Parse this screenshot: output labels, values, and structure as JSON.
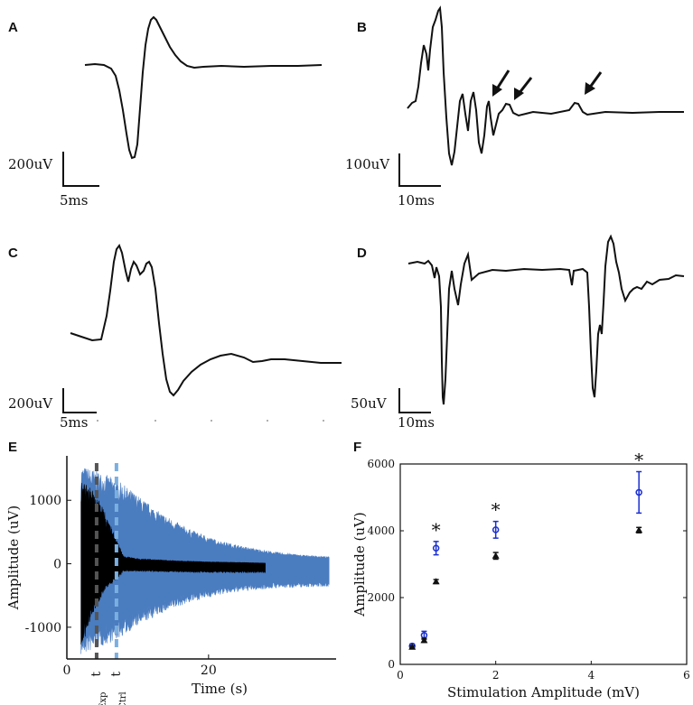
{
  "panels": {
    "A": {
      "letter": "A",
      "scale_v": "200uV",
      "scale_t": "5ms"
    },
    "B": {
      "letter": "B",
      "scale_v": "100uV",
      "scale_t": "10ms"
    },
    "C": {
      "letter": "C",
      "scale_v": "200uV",
      "scale_t": "5ms"
    },
    "D": {
      "letter": "D",
      "scale_v": "50uV",
      "scale_t": "10ms"
    },
    "E": {
      "letter": "E"
    },
    "F": {
      "letter": "F"
    }
  },
  "chart_data": [
    {
      "panel": "E",
      "type": "area",
      "xlabel": "Time (s)",
      "ylabel": "Amplitude (uV)",
      "xlim": [
        0,
        38
      ],
      "ylim": [
        -1500,
        1700
      ],
      "xticks": [
        0,
        20
      ],
      "yticks": [
        -1000,
        0,
        1000
      ],
      "series": [
        {
          "color": "#4a7cc0",
          "envelope_x": [
            2,
            4,
            7,
            10,
            13,
            17,
            21,
            25,
            29,
            33,
            37
          ],
          "upper": [
            1550,
            1480,
            1330,
            1080,
            820,
            560,
            380,
            270,
            190,
            140,
            110
          ],
          "lower": [
            -1450,
            -1350,
            -1200,
            -980,
            -800,
            -620,
            -500,
            -430,
            -390,
            -370,
            -360
          ]
        },
        {
          "color": "#000000",
          "envelope_x": [
            2,
            3,
            4,
            5,
            6,
            7,
            8,
            10,
            15,
            20,
            25,
            28
          ],
          "upper": [
            1300,
            1250,
            1100,
            900,
            650,
            380,
            120,
            80,
            50,
            30,
            20,
            10
          ],
          "lower": [
            -1400,
            -1000,
            -700,
            -500,
            -350,
            -250,
            -120,
            -120,
            -130,
            -140,
            -140,
            -140
          ]
        }
      ],
      "annotations": [
        {
          "x": 4.2,
          "label": "t",
          "sub": "80-Exp",
          "color": "#555555"
        },
        {
          "x": 7.0,
          "label": "t",
          "sub": "80-Ctrl",
          "color": "#7ab0e0"
        }
      ]
    },
    {
      "panel": "F",
      "type": "scatter",
      "xlabel": "Stimulation Amplitude (mV)",
      "ylabel": "Amplitude (uV)",
      "xlim": [
        0,
        6
      ],
      "ylim": [
        0,
        6000
      ],
      "xticks": [
        0,
        2,
        4,
        6
      ],
      "yticks": [
        0,
        2000,
        4000,
        6000
      ],
      "series": [
        {
          "color": "#1a2fd0",
          "marker": "circle",
          "x": [
            0.25,
            0.5,
            0.75,
            2,
            5
          ],
          "y": [
            550,
            870,
            3480,
            4030,
            5150
          ],
          "err": [
            60,
            120,
            200,
            250,
            620
          ]
        },
        {
          "color": "#111111",
          "marker": "triangle",
          "x": [
            0.25,
            0.5,
            0.75,
            2,
            5
          ],
          "y": [
            520,
            720,
            2480,
            3250,
            4020
          ],
          "err": [
            40,
            60,
            60,
            100,
            80
          ]
        }
      ],
      "significance": [
        {
          "x": 0.75,
          "label": "*"
        },
        {
          "x": 2,
          "label": "*"
        },
        {
          "x": 5,
          "label": "*"
        }
      ]
    }
  ]
}
